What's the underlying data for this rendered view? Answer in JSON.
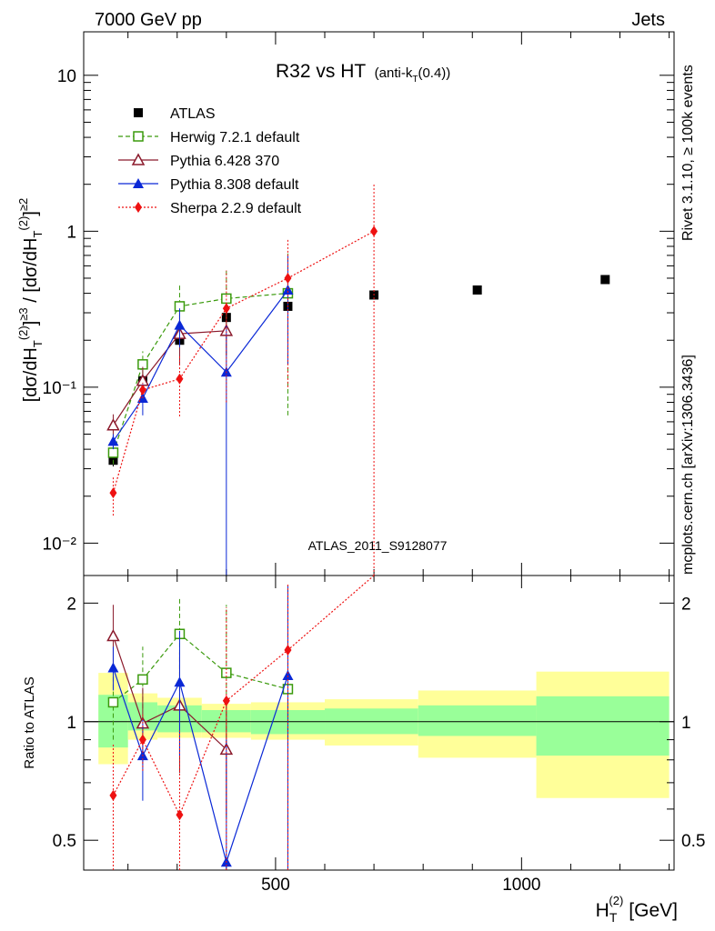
{
  "header": {
    "left": "7000 GeV pp",
    "right": "Jets"
  },
  "side_labels": {
    "rivet": "Rivet 3.1.10, ≥ 100k events",
    "mcplots": "mcplots.cern.ch [arXiv:1306.3436]"
  },
  "chart_data": {
    "type": "scatter",
    "title": "R32 vs HT",
    "title_suffix": "(anti-k",
    "title_suffix_sub": "T",
    "title_suffix_end": "(0.4))",
    "watermark": "ATLAS_2011_S9128077",
    "xlabel": "H",
    "xlabel_sub": "T",
    "xlabel_sup": "(2)",
    "xlabel_unit": "[GeV]",
    "ylabel": "[dσ/dH_T^(2)]^≥3 / [dσ/dH_T^(2)]^≥2",
    "ratio_ylabel": "Ratio to ATLAS",
    "x_ticks": [
      "500",
      "1000"
    ],
    "y_ticks": [
      "10⁻²",
      "10⁻¹",
      "1",
      "10"
    ],
    "ratio_y_ticks": [
      "0.5",
      "1",
      "2"
    ],
    "xlim": [
      110,
      1310
    ],
    "ylim": [
      0.0062,
      19
    ],
    "ratio_ylim": [
      0.42,
      2.35
    ],
    "y_scale": "log",
    "ratio_y_scale": "log",
    "legend_position": "top-left",
    "bins": [
      {
        "x": 170,
        "lo": 140,
        "hi": 200
      },
      {
        "x": 230,
        "lo": 200,
        "hi": 260
      },
      {
        "x": 305,
        "lo": 260,
        "hi": 350
      },
      {
        "x": 400,
        "lo": 350,
        "hi": 450
      },
      {
        "x": 525,
        "lo": 450,
        "hi": 600
      },
      {
        "x": 700,
        "lo": 600,
        "hi": 790
      },
      {
        "x": 910,
        "lo": 790,
        "hi": 1030
      },
      {
        "x": 1170,
        "lo": 1030,
        "hi": 1300
      }
    ],
    "reference_bands": [
      {
        "lo": 140,
        "hi": 200,
        "green": [
          0.86,
          1.17
        ],
        "yellow": [
          0.78,
          1.33
        ]
      },
      {
        "lo": 200,
        "hi": 260,
        "green": [
          0.95,
          1.12
        ],
        "yellow": [
          0.9,
          1.18
        ]
      },
      {
        "lo": 260,
        "hi": 350,
        "green": [
          0.94,
          1.1
        ],
        "yellow": [
          0.91,
          1.15
        ]
      },
      {
        "lo": 350,
        "hi": 450,
        "green": [
          0.94,
          1.07
        ],
        "yellow": [
          0.91,
          1.11
        ]
      },
      {
        "lo": 450,
        "hi": 600,
        "green": [
          0.93,
          1.07
        ],
        "yellow": [
          0.9,
          1.12
        ]
      },
      {
        "lo": 600,
        "hi": 790,
        "green": [
          0.93,
          1.08
        ],
        "yellow": [
          0.87,
          1.14
        ]
      },
      {
        "lo": 790,
        "hi": 1030,
        "green": [
          0.92,
          1.1
        ],
        "yellow": [
          0.81,
          1.2
        ]
      },
      {
        "lo": 1030,
        "hi": 1300,
        "green": [
          0.82,
          1.16
        ],
        "yellow": [
          0.64,
          1.34
        ]
      }
    ],
    "series": [
      {
        "name": "ATLAS",
        "color": "#000000",
        "marker": "square-filled",
        "line": "none",
        "x": [
          170,
          230,
          305,
          400,
          525,
          700,
          910,
          1170
        ],
        "y": [
          0.034,
          0.11,
          0.2,
          0.28,
          0.33,
          0.39,
          0.42,
          0.49
        ],
        "err_lo": [
          0.031,
          0.1,
          0.185,
          0.265,
          0.31,
          0.37,
          0.4,
          0.47
        ],
        "err_hi": [
          0.037,
          0.12,
          0.215,
          0.295,
          0.35,
          0.41,
          0.44,
          0.51
        ],
        "ratio": [],
        "ratio_lo": [],
        "ratio_hi": []
      },
      {
        "name": "Herwig 7.2.1 default",
        "color": "#3a9a0c",
        "marker": "square-open",
        "line": "dashed",
        "x": [
          170,
          230,
          305,
          400,
          525
        ],
        "y": [
          0.038,
          0.14,
          0.33,
          0.37,
          0.4
        ],
        "err_lo": [
          0.032,
          0.12,
          0.22,
          0.16,
          0.066
        ],
        "err_hi": [
          0.045,
          0.17,
          0.45,
          0.56,
          0.72
        ],
        "ratio": [
          1.12,
          1.28,
          1.67,
          1.33,
          1.21
        ],
        "ratio_lo": [
          0.9,
          1.08,
          1.1,
          0.57,
          0.2
        ],
        "ratio_hi": [
          1.34,
          1.55,
          2.08,
          1.98,
          2.22
        ]
      },
      {
        "name": "Pythia 6.428 370",
        "color": "#8b1a2c",
        "marker": "triangle-open",
        "line": "solid",
        "x": [
          170,
          230,
          305,
          400
        ],
        "y": [
          0.057,
          0.11,
          0.22,
          0.23
        ],
        "err_lo": [
          0.047,
          0.086,
          0.14,
          0.16
        ],
        "err_hi": [
          0.067,
          0.135,
          0.3,
          0.3
        ],
        "ratio": [
          1.65,
          0.99,
          1.1,
          0.85
        ],
        "ratio_lo": [
          1.38,
          0.78,
          0.74,
          0.58
        ],
        "ratio_hi": [
          1.98,
          1.22,
          1.5,
          1.1
        ]
      },
      {
        "name": "Pythia 8.308 default",
        "color": "#0a28d6",
        "marker": "triangle-filled",
        "line": "solid",
        "x": [
          170,
          230,
          305,
          400,
          525
        ],
        "y": [
          0.045,
          0.085,
          0.25,
          0.125,
          0.42
        ],
        "err_lo": [
          0.04,
          0.066,
          0.18,
          0.002,
          0.14
        ],
        "err_hi": [
          0.05,
          0.105,
          0.32,
          0.25,
          0.7
        ],
        "ratio": [
          1.37,
          0.82,
          1.26,
          0.44,
          1.31
        ],
        "ratio_lo": [
          1.2,
          0.63,
          0.82,
          0.4,
          0.4
        ],
        "ratio_hi": [
          1.55,
          1.02,
          1.7,
          0.9,
          2.22
        ]
      },
      {
        "name": "Sherpa 2.2.9 default",
        "color": "#ee1111",
        "marker": "diamond-filled",
        "line": "dotted",
        "x": [
          170,
          230,
          305,
          400,
          525,
          700
        ],
        "y": [
          0.021,
          0.096,
          0.113,
          0.32,
          0.5,
          1.0
        ],
        "err_lo": [
          0.015,
          0.085,
          0.065,
          0.08,
          0.1,
          0.003
        ],
        "err_hi": [
          0.027,
          0.107,
          0.16,
          0.56,
          0.9,
          2.0
        ],
        "ratio": [
          0.65,
          0.9,
          0.58,
          1.13,
          1.52,
          2.7
        ],
        "ratio_lo": [
          0.42,
          0.75,
          0.4,
          0.4,
          0.4,
          2.7
        ],
        "ratio_hi": [
          0.88,
          1.05,
          0.95,
          1.95,
          2.25,
          2.7
        ]
      }
    ]
  }
}
